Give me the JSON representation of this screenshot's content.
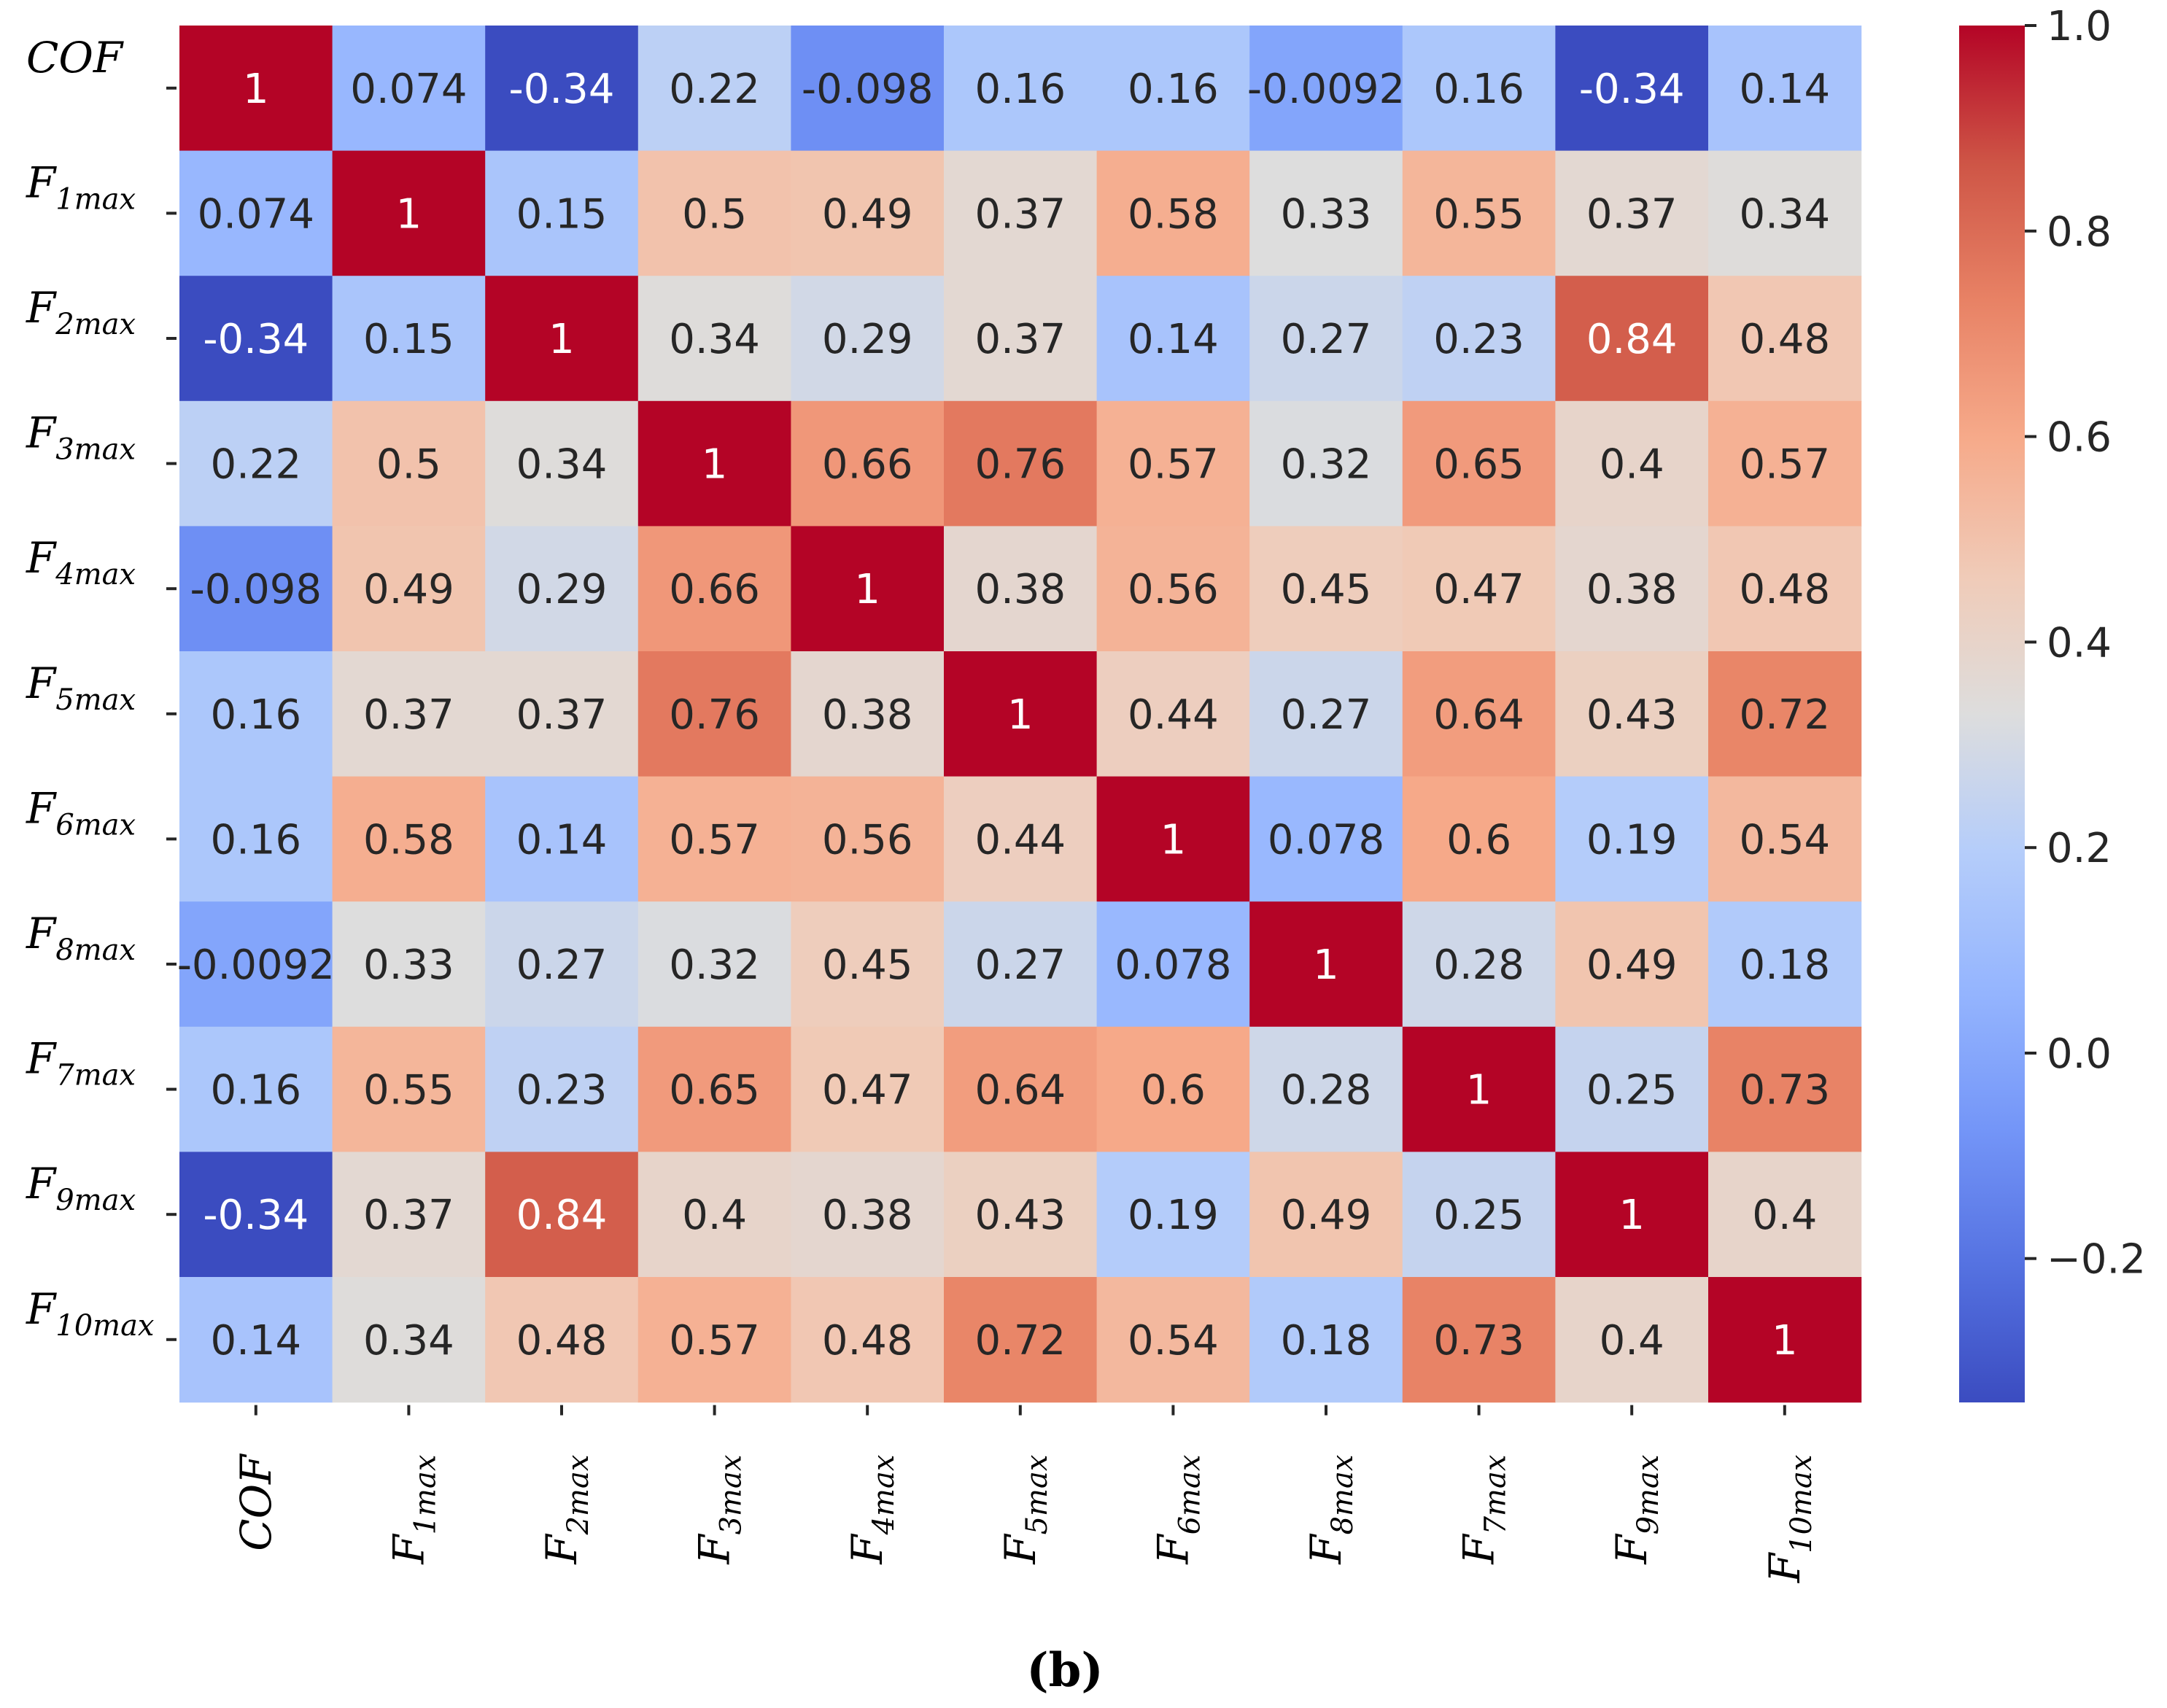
{
  "chart_data": {
    "type": "heatmap",
    "colormap": "coolwarm",
    "vmin": -0.34,
    "vmax": 1.0,
    "labels": [
      {
        "base": "COF",
        "sub": ""
      },
      {
        "base": "F",
        "sub": "1max"
      },
      {
        "base": "F",
        "sub": "2max"
      },
      {
        "base": "F",
        "sub": "3max"
      },
      {
        "base": "F",
        "sub": "4max"
      },
      {
        "base": "F",
        "sub": "5max"
      },
      {
        "base": "F",
        "sub": "6max"
      },
      {
        "base": "F",
        "sub": "8max"
      },
      {
        "base": "F",
        "sub": "7max"
      },
      {
        "base": "F",
        "sub": "9max"
      },
      {
        "base": "F",
        "sub": "10max"
      }
    ],
    "matrix": [
      [
        1,
        0.074,
        -0.34,
        0.22,
        -0.098,
        0.16,
        0.16,
        -0.0092,
        0.16,
        -0.34,
        0.14
      ],
      [
        0.074,
        1,
        0.15,
        0.5,
        0.49,
        0.37,
        0.58,
        0.33,
        0.55,
        0.37,
        0.34
      ],
      [
        -0.34,
        0.15,
        1,
        0.34,
        0.29,
        0.37,
        0.14,
        0.27,
        0.23,
        0.84,
        0.48
      ],
      [
        0.22,
        0.5,
        0.34,
        1,
        0.66,
        0.76,
        0.57,
        0.32,
        0.65,
        0.4,
        0.57
      ],
      [
        -0.098,
        0.49,
        0.29,
        0.66,
        1,
        0.38,
        0.56,
        0.45,
        0.47,
        0.38,
        0.48
      ],
      [
        0.16,
        0.37,
        0.37,
        0.76,
        0.38,
        1,
        0.44,
        0.27,
        0.64,
        0.43,
        0.72
      ],
      [
        0.16,
        0.58,
        0.14,
        0.57,
        0.56,
        0.44,
        1,
        0.078,
        0.6,
        0.19,
        0.54
      ],
      [
        -0.0092,
        0.33,
        0.27,
        0.32,
        0.45,
        0.27,
        0.078,
        1,
        0.28,
        0.49,
        0.18
      ],
      [
        0.16,
        0.55,
        0.23,
        0.65,
        0.47,
        0.64,
        0.6,
        0.28,
        1,
        0.25,
        0.73
      ],
      [
        -0.34,
        0.37,
        0.84,
        0.4,
        0.38,
        0.43,
        0.19,
        0.49,
        0.25,
        1,
        0.4
      ],
      [
        0.14,
        0.34,
        0.48,
        0.57,
        0.48,
        0.72,
        0.54,
        0.18,
        0.73,
        0.4,
        1
      ]
    ],
    "colorbar_ticks": [
      1.0,
      0.8,
      0.6,
      0.4,
      0.2,
      0.0,
      -0.2
    ],
    "colorbar_tick_labels": [
      "1.0",
      "0.8",
      "0.6",
      "0.4",
      "0.2",
      "0.0",
      "−0.2"
    ]
  },
  "caption": "(b)"
}
